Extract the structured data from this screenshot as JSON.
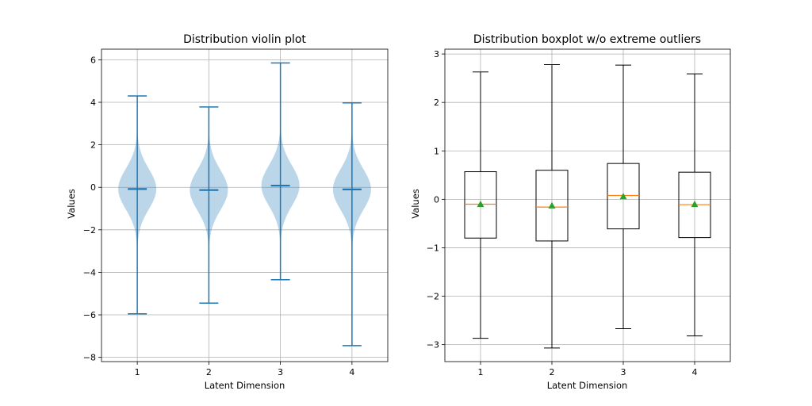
{
  "colors": {
    "violin_fill": "#1f77b4",
    "violin_line": "#1f77b4",
    "box_line": "#000000",
    "median": "#ff7f0e",
    "mean_marker": "#2ca02c",
    "grid": "#b0b0b0"
  },
  "chart_data": [
    {
      "type": "violin",
      "title": "Distribution violin plot",
      "xlabel": "Latent Dimension",
      "ylabel": "Values",
      "categories": [
        "1",
        "2",
        "3",
        "4"
      ],
      "ylim": [
        -8.2,
        6.5
      ],
      "yticks": [
        -8,
        -6,
        -4,
        -2,
        0,
        2,
        4,
        6
      ],
      "ytick_labels": [
        "−8",
        "−6",
        "−4",
        "−2",
        "0",
        "2",
        "4",
        "6"
      ],
      "grid": true,
      "series": [
        {
          "name": "1",
          "min": -5.95,
          "max": 4.3,
          "median": -0.08
        },
        {
          "name": "2",
          "min": -5.45,
          "max": 3.78,
          "median": -0.13
        },
        {
          "name": "3",
          "min": -4.35,
          "max": 5.85,
          "median": 0.08
        },
        {
          "name": "4",
          "min": -7.45,
          "max": 3.97,
          "median": -0.1
        }
      ]
    },
    {
      "type": "box",
      "title": "Distribution boxplot w/o extreme outliers",
      "xlabel": "Latent Dimension",
      "ylabel": "Values",
      "categories": [
        "1",
        "2",
        "3",
        "4"
      ],
      "ylim": [
        -3.35,
        3.1
      ],
      "yticks": [
        -3,
        -2,
        -1,
        0,
        1,
        2,
        3
      ],
      "ytick_labels": [
        "−3",
        "−2",
        "−1",
        "0",
        "1",
        "2",
        "3"
      ],
      "grid": true,
      "series": [
        {
          "name": "1",
          "whisker_low": -2.87,
          "q1": -0.8,
          "median": -0.1,
          "mean": -0.1,
          "q3": 0.57,
          "whisker_high": 2.63
        },
        {
          "name": "2",
          "whisker_low": -3.07,
          "q1": -0.86,
          "median": -0.16,
          "mean": -0.13,
          "q3": 0.6,
          "whisker_high": 2.78
        },
        {
          "name": "3",
          "whisker_low": -2.67,
          "q1": -0.61,
          "median": 0.08,
          "mean": 0.06,
          "q3": 0.74,
          "whisker_high": 2.77
        },
        {
          "name": "4",
          "whisker_low": -2.82,
          "q1": -0.79,
          "median": -0.11,
          "mean": -0.1,
          "q3": 0.56,
          "whisker_high": 2.59
        }
      ]
    }
  ]
}
